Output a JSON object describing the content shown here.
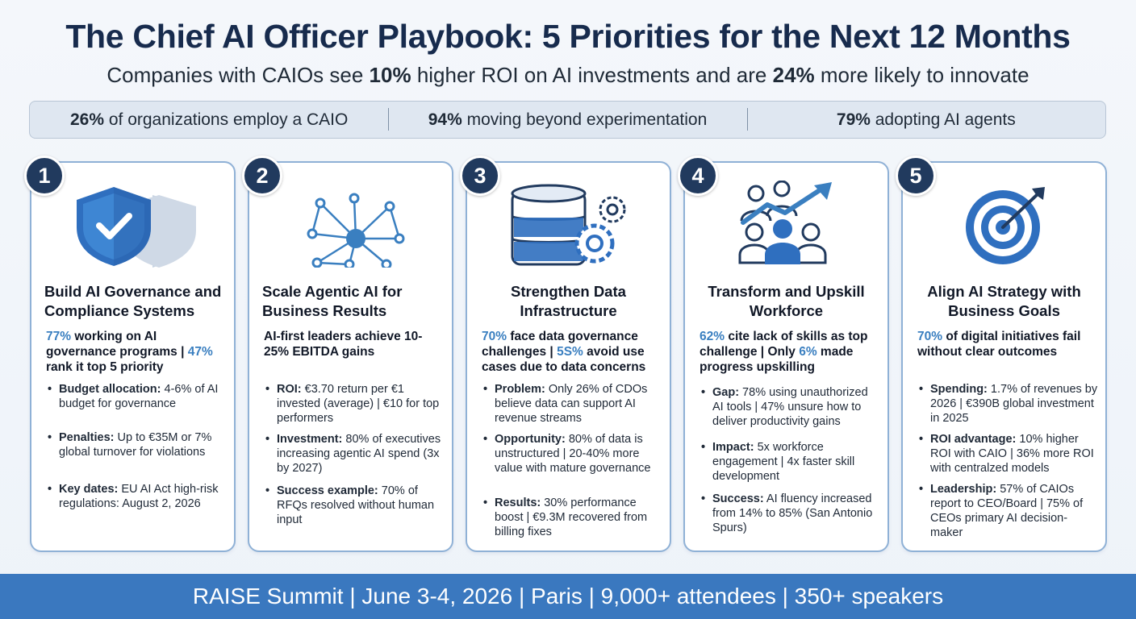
{
  "header": {
    "title": "The Chief AI Officer Playbook: 5 Priorities for the Next 12 Months",
    "subtitle_pre": "Companies with CAIOs see ",
    "subtitle_b1": "10%",
    "subtitle_mid": " higher ROI on AI investments and are ",
    "subtitle_b2": "24%",
    "subtitle_post": " more likely to innovate"
  },
  "stats": [
    {
      "value": "26%",
      "text": " of organizations employ a CAIO"
    },
    {
      "value": "94%",
      "text": " moving beyond experimentation"
    },
    {
      "value": "79%",
      "text": " adopting AI agents"
    }
  ],
  "cards": [
    {
      "number": "1",
      "icon": "shield-check-icon",
      "title": "Build AI Governance and Compliance Systems",
      "hl1": "77%",
      "hl_text1": " working on AI governance programs | ",
      "hl2": "47%",
      "hl_text2": " rank it top 5 priority",
      "items": [
        {
          "label": "Budget allocation:",
          "text": " 4-6% of AI budget for governance"
        },
        {
          "label": "Penalties:",
          "text": " Up to €35M or 7% global turnover for violations"
        },
        {
          "label": "Key dates:",
          "text": " EU AI Act high-risk regulations: August 2, 2026"
        }
      ]
    },
    {
      "number": "2",
      "icon": "network-nodes-icon",
      "title": "Scale Agentic AI for Business Results",
      "hl1": "",
      "hl_text1": "AI-first leaders achieve 10-25% EBITDA gains",
      "hl2": "",
      "hl_text2": "",
      "items": [
        {
          "label": "ROI:",
          "text": " €3.70 return per €1 invested (average) | €10 for top performers"
        },
        {
          "label": "Investment:",
          "text": " 80% of executives increasing agentic AI spend (3x by 2027)"
        },
        {
          "label": "Success example:",
          "text": " 70% of RFQs resolved without human input"
        }
      ]
    },
    {
      "number": "3",
      "icon": "database-gears-icon",
      "title": "Strengthen Data Infrastructure",
      "hl1": "70%",
      "hl_text1": " face data governance challenges | ",
      "hl2": "5S%",
      "hl_text2": " avoid use cases due to data concerns",
      "items": [
        {
          "label": "Problem:",
          "text": " Only 26% of CDOs believe data can support AI revenue streams"
        },
        {
          "label": "Opportunity:",
          "text": " 80% of data is unstructured | 20-40% more value with mature governance"
        },
        {
          "label": "Results:",
          "text": " 30% performance boost | €9.3M recovered from billing fixes"
        }
      ]
    },
    {
      "number": "4",
      "icon": "people-growth-icon",
      "title": "Transform and Upskill Workforce",
      "hl1": "62%",
      "hl_text1": " cite lack of skills as top challenge | Only ",
      "hl2": "6%",
      "hl_text2": " made progress upskilling",
      "items": [
        {
          "label": "Gap:",
          "text": " 78% using unauthorized AI tools | 47% unsure how to deliver productivity gains"
        },
        {
          "label": "Impact:",
          "text": " 5x workforce engagement | 4x faster skill development"
        },
        {
          "label": "Success:",
          "text": " AI fluency increased from 14% to 85% (San Antonio Spurs)"
        }
      ]
    },
    {
      "number": "5",
      "icon": "target-arrow-icon",
      "title": "Align AI Strategy with Business Goals",
      "hl1": "70%",
      "hl_text1": " of digital initiatives fail without clear outcomes",
      "hl2": "",
      "hl_text2": "",
      "items": [
        {
          "label": "Spending:",
          "text": " 1.7% of revenues by 2026 | €390B global investment in 2025"
        },
        {
          "label": "ROI advantage:",
          "text": " 10% higher ROI with CAIO | 36% more ROI with centralzed models"
        },
        {
          "label": "Leadership:",
          "text": " 57% of CAIOs report to CEO/Board | 75% of CEOs primary AI decision-maker"
        }
      ]
    }
  ],
  "footer": {
    "text": "RAISE Summit | June 3-4, 2026 | Paris | 9,000+ attendees | 350+ speakers"
  },
  "colors": {
    "navy": "#213a5e",
    "accent_blue": "#3a7fc0",
    "footer_blue": "#3a78bf",
    "card_border": "#8fb1d6"
  }
}
